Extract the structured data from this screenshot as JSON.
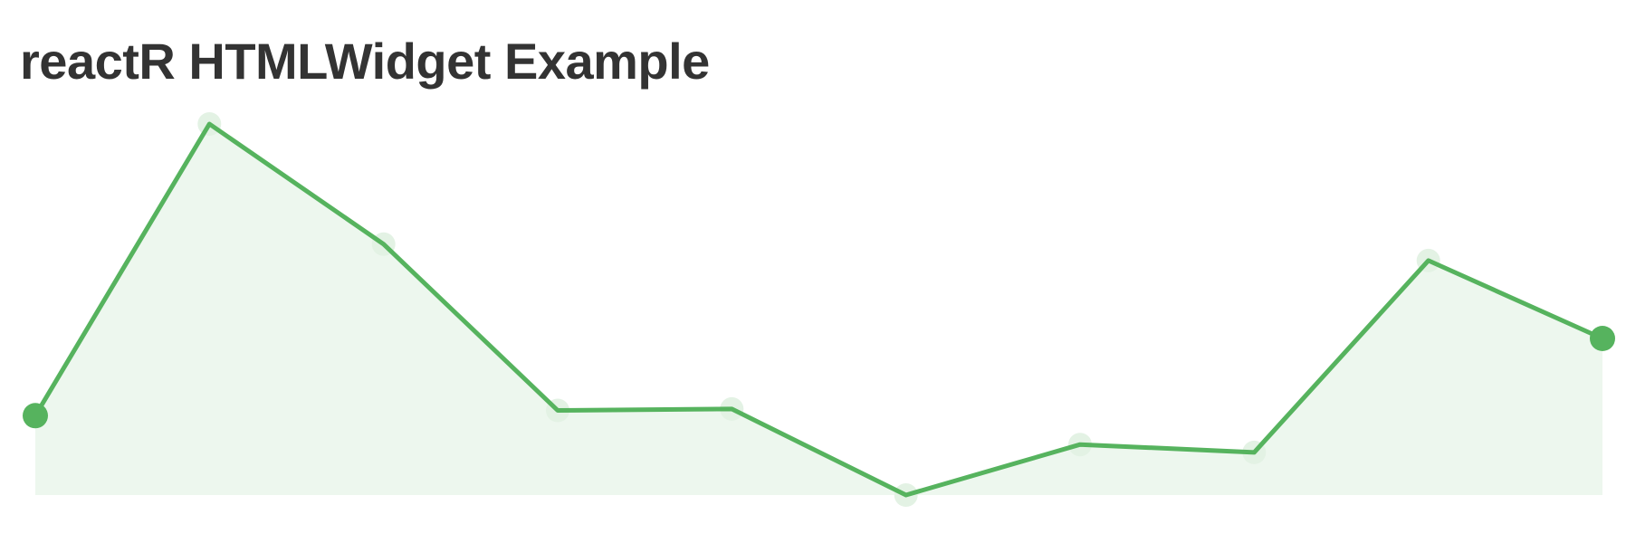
{
  "page": {
    "title": "reactR HTMLWidget Example"
  },
  "chart_data": {
    "type": "area",
    "title": "",
    "xlabel": "",
    "ylabel": "",
    "grid": false,
    "axes_visible": false,
    "x": [
      1,
      2,
      3,
      4,
      5,
      6,
      7,
      8,
      9,
      10
    ],
    "ylim": [
      0,
      100
    ],
    "series": [
      {
        "name": "",
        "values": [
          21.4,
          100,
          67.6,
          22.8,
          23.2,
          0,
          13.6,
          11.5,
          63.2,
          42.2
        ]
      }
    ],
    "highlighted_points": [
      0,
      9
    ],
    "colors": {
      "line": "#56b35e",
      "area": "#edf7ee",
      "point": "#56b35e",
      "faint_point": "#e3f2e4"
    }
  }
}
